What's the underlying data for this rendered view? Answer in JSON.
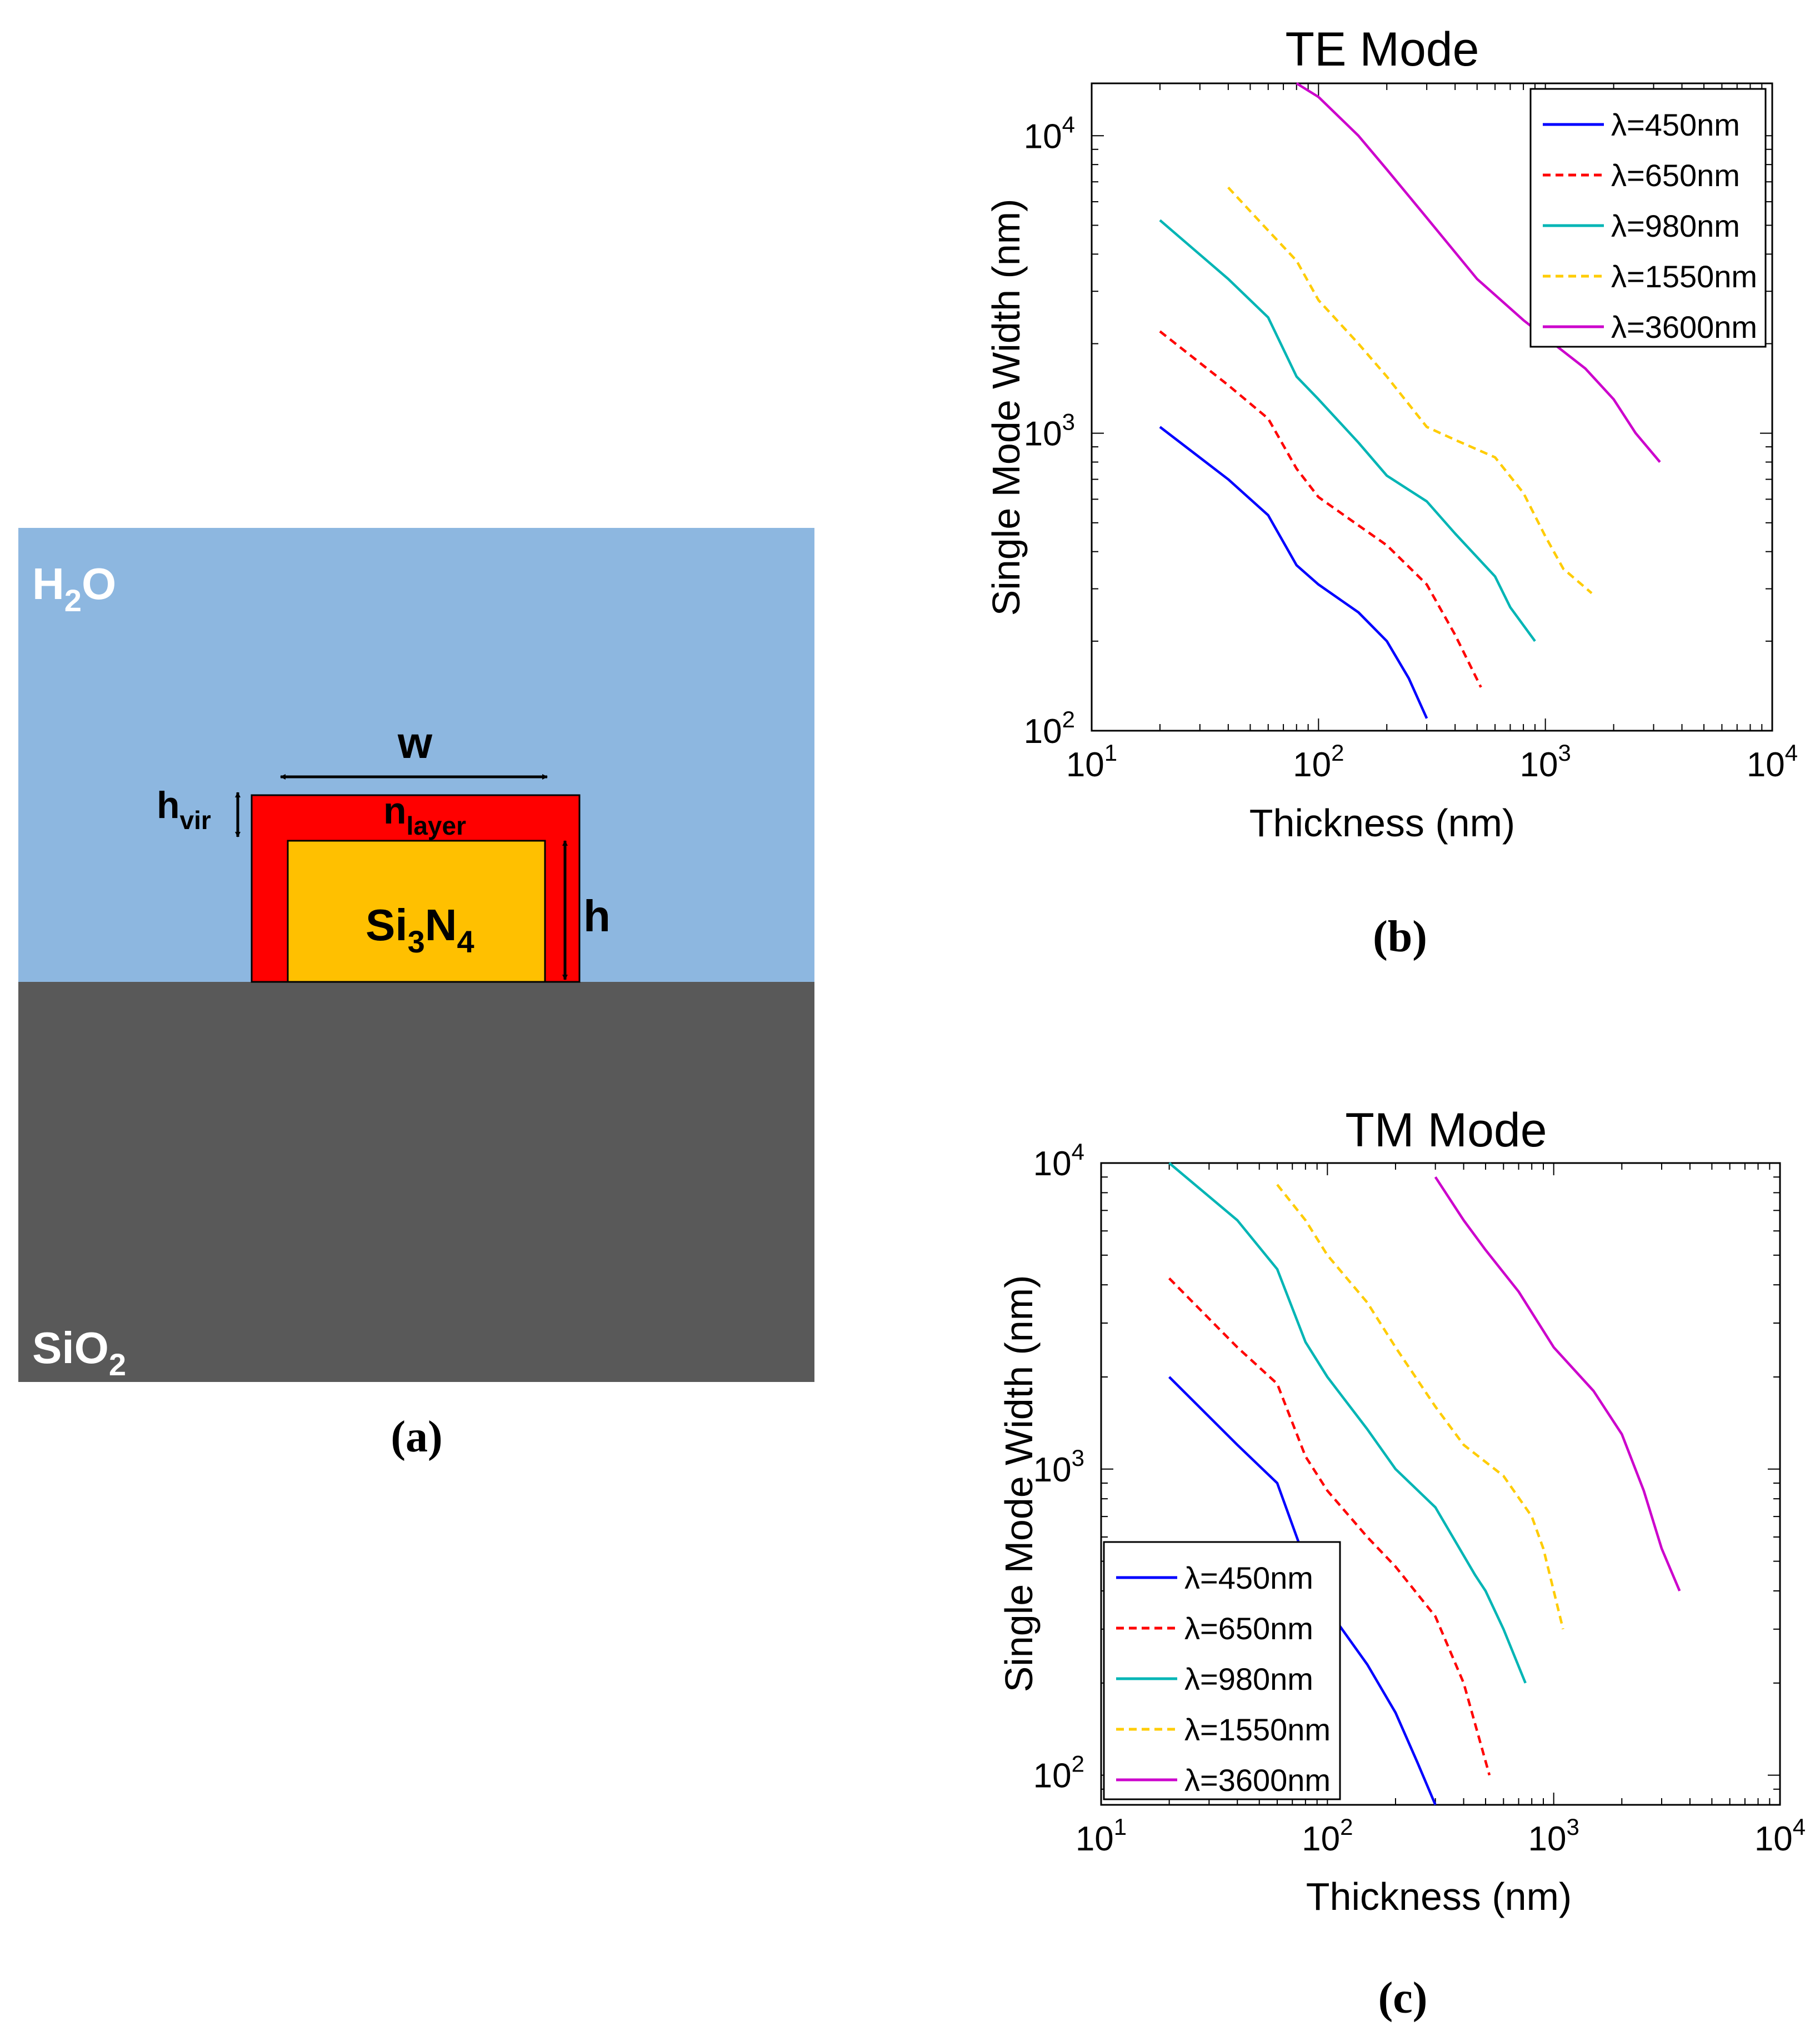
{
  "panel_a": {
    "caption": "(a)",
    "water_label": {
      "main": "H",
      "sub": "2",
      "tail": "O"
    },
    "substrate_label": {
      "main": "SiO",
      "sub": "2"
    },
    "core_label": {
      "a": "Si",
      "s1": "3",
      "b": "N",
      "s2": "4"
    },
    "width_label": "w",
    "height_label": "h",
    "hvir_label": {
      "main": "h",
      "sub": "vir"
    },
    "nlayer_label": {
      "main": "n",
      "sub": "layer"
    },
    "colors": {
      "water": "#8DB7E0",
      "substrate": "#595959",
      "layer": "#FF0000",
      "core": "#FFC000"
    }
  },
  "chart_data": [
    {
      "id": "te",
      "type": "line",
      "title": "TE Mode",
      "caption": "(b)",
      "xlabel": "Thickness (nm)",
      "ylabel": "Single Mode Width (nm)",
      "xscale": "log",
      "yscale": "log",
      "xlim": [
        10,
        10000
      ],
      "ylim": [
        100,
        15000
      ],
      "xticks": [
        {
          "base": "10",
          "exp": "1"
        },
        {
          "base": "10",
          "exp": "2"
        },
        {
          "base": "10",
          "exp": "3"
        },
        {
          "base": "10",
          "exp": "4"
        }
      ],
      "yticks": [
        {
          "base": "10",
          "exp": "2",
          "value": 100
        },
        {
          "base": "10",
          "exp": "3",
          "value": 1000
        },
        {
          "base": "10",
          "exp": "4",
          "value": 10000
        }
      ],
      "legend": {
        "position": "top-right"
      },
      "series": [
        {
          "name": "λ=450nm",
          "color": "#0000FF",
          "dash": "solid",
          "x": [
            20,
            40,
            60,
            80,
            100,
            150,
            200,
            250,
            300
          ],
          "y": [
            1050,
            700,
            530,
            360,
            310,
            250,
            200,
            150,
            110
          ]
        },
        {
          "name": "λ=650nm",
          "color": "#FF0000",
          "dash": "dashed",
          "x": [
            20,
            40,
            60,
            80,
            100,
            150,
            200,
            300,
            400,
            520
          ],
          "y": [
            2200,
            1450,
            1120,
            760,
            610,
            490,
            420,
            310,
            210,
            140
          ]
        },
        {
          "name": "λ=980nm",
          "color": "#00B5B5",
          "dash": "solid",
          "x": [
            20,
            40,
            60,
            80,
            100,
            150,
            200,
            300,
            400,
            600,
            700,
            900
          ],
          "y": [
            5200,
            3300,
            2450,
            1550,
            1300,
            930,
            720,
            590,
            460,
            330,
            260,
            200
          ]
        },
        {
          "name": "λ=1550nm",
          "color": "#FFCC00",
          "dash": "dashed",
          "x": [
            40,
            60,
            80,
            100,
            150,
            200,
            300,
            400,
            600,
            800,
            1000,
            1200,
            1600
          ],
          "y": [
            6700,
            4800,
            3800,
            2800,
            2000,
            1550,
            1050,
            950,
            830,
            630,
            450,
            350,
            290
          ]
        },
        {
          "name": "λ=3600nm",
          "color": "#CC00CC",
          "dash": "solid",
          "x": [
            80,
            100,
            150,
            200,
            300,
            500,
            800,
            1000,
            1500,
            2000,
            2500,
            3200
          ],
          "y": [
            15000,
            13500,
            10000,
            7700,
            5300,
            3300,
            2400,
            2100,
            1650,
            1300,
            1000,
            800
          ]
        }
      ]
    },
    {
      "id": "tm",
      "type": "line",
      "title": "TM Mode",
      "caption": "(c)",
      "xlabel": "Thickness (nm)",
      "ylabel": "Single Mode Width (nm)",
      "xscale": "log",
      "yscale": "log",
      "xlim": [
        10,
        10000
      ],
      "ylim": [
        80,
        10000
      ],
      "xticks": [
        {
          "base": "10",
          "exp": "1"
        },
        {
          "base": "10",
          "exp": "2"
        },
        {
          "base": "10",
          "exp": "3"
        },
        {
          "base": "10",
          "exp": "4"
        }
      ],
      "yticks": [
        {
          "base": "10",
          "exp": "2",
          "value": 100
        },
        {
          "base": "10",
          "exp": "3",
          "value": 1000
        },
        {
          "base": "10",
          "exp": "4",
          "value": 10000
        }
      ],
      "legend": {
        "position": "bottom-left"
      },
      "series": [
        {
          "name": "λ=450nm",
          "color": "#0000FF",
          "dash": "solid",
          "x": [
            20,
            40,
            60,
            80,
            100,
            150,
            200,
            250,
            300
          ],
          "y": [
            2000,
            1200,
            900,
            500,
            350,
            230,
            160,
            110,
            80
          ]
        },
        {
          "name": "λ=650nm",
          "color": "#FF0000",
          "dash": "dashed",
          "x": [
            20,
            40,
            60,
            80,
            100,
            150,
            200,
            300,
            400,
            520
          ],
          "y": [
            4200,
            2500,
            1900,
            1100,
            850,
            600,
            480,
            330,
            200,
            100
          ]
        },
        {
          "name": "λ=980nm",
          "color": "#00B5B5",
          "dash": "solid",
          "x": [
            20,
            40,
            60,
            80,
            100,
            150,
            200,
            300,
            450,
            500,
            600,
            750
          ],
          "y": [
            10000,
            6500,
            4500,
            2600,
            2000,
            1350,
            1000,
            750,
            450,
            400,
            300,
            200
          ]
        },
        {
          "name": "λ=1550nm",
          "color": "#FFCC00",
          "dash": "dashed",
          "x": [
            60,
            80,
            100,
            150,
            200,
            300,
            400,
            600,
            800,
            900,
            1000,
            1100
          ],
          "y": [
            8500,
            6500,
            5000,
            3500,
            2500,
            1600,
            1200,
            950,
            700,
            550,
            400,
            300
          ]
        },
        {
          "name": "λ=3600nm",
          "color": "#CC00CC",
          "dash": "solid",
          "x": [
            300,
            400,
            500,
            700,
            1000,
            1500,
            2000,
            2500,
            3000,
            3600
          ],
          "y": [
            9000,
            6500,
            5200,
            3800,
            2500,
            1800,
            1300,
            850,
            550,
            400
          ]
        }
      ]
    }
  ]
}
